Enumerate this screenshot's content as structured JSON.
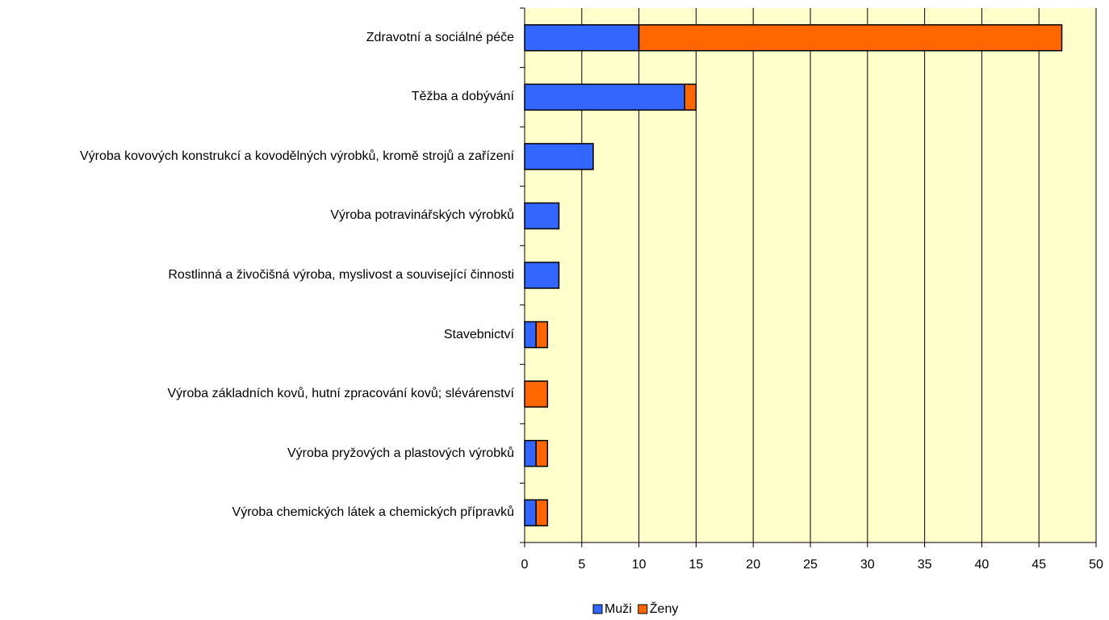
{
  "chart_data": {
    "type": "stacked-bar-horizontal",
    "categories": [
      "Zdravotní a sociálné péče",
      "Těžba a dobývání",
      "Výroba kovových konstrukcí a kovodělných výrobků, kromě strojů a zařízení",
      "Výroba potravinářských výrobků",
      "Rostlinná a živočišná výroba, myslivost a související činnosti",
      "Stavebnictví",
      "Výroba základních kovů, hutní zpracování kovů; slévárenství",
      "Výroba pryžových a plastových výrobků",
      "Výroba chemických látek a chemických přípravků"
    ],
    "series": [
      {
        "name": "Muži",
        "color": "#3366ff",
        "values": [
          10,
          14,
          6,
          3,
          3,
          1,
          0,
          1,
          1
        ]
      },
      {
        "name": "Ženy",
        "color": "#ff6600",
        "values": [
          37,
          1,
          0,
          0,
          0,
          1,
          2,
          1,
          1
        ]
      }
    ],
    "xlim": [
      0,
      50
    ],
    "xticks": [
      0,
      5,
      10,
      15,
      20,
      25,
      30,
      35,
      40,
      45,
      50
    ],
    "grid": true,
    "plot_background": "#ffffcc",
    "legend": "bottom"
  }
}
